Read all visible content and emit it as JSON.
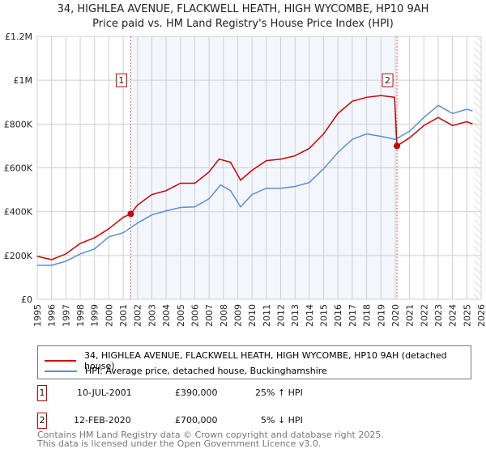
{
  "chart_data": {
    "type": "line",
    "title": "34, HIGHLEA AVENUE, FLACKWELL HEATH, HIGH WYCOMBE, HP10 9AH",
    "subtitle": "Price paid vs. HM Land Registry's House Price Index (HPI)",
    "xlim": [
      1995,
      2026
    ],
    "ylim": [
      0,
      1200000
    ],
    "y_ticks": [
      {
        "v": 0,
        "label": "£0"
      },
      {
        "v": 200000,
        "label": "£200K"
      },
      {
        "v": 400000,
        "label": "£400K"
      },
      {
        "v": 600000,
        "label": "£600K"
      },
      {
        "v": 800000,
        "label": "£800K"
      },
      {
        "v": 1000000,
        "label": "£1M"
      },
      {
        "v": 1200000,
        "label": "£1.2M"
      }
    ],
    "x_ticks": [
      "1995",
      "1996",
      "1997",
      "1998",
      "1999",
      "2000",
      "2001",
      "2002",
      "2003",
      "2004",
      "2005",
      "2006",
      "2007",
      "2008",
      "2009",
      "2010",
      "2011",
      "2012",
      "2013",
      "2014",
      "2015",
      "2016",
      "2017",
      "2018",
      "2019",
      "2020",
      "2021",
      "2022",
      "2023",
      "2024",
      "2025",
      "2026"
    ],
    "grid": true,
    "shaded_range": [
      2001.53,
      2020.12
    ],
    "hatched_from": 2025.5,
    "series": [
      {
        "name": "34, HIGHLEA AVENUE, FLACKWELL HEATH, HIGH WYCOMBE, HP10 9AH (detached house)",
        "color": "#cc0000",
        "x": [
          1995,
          1996,
          1997,
          1998,
          1999,
          2000,
          2001,
          2001.53,
          2002,
          2003,
          2004,
          2005,
          2006,
          2007,
          2007.7,
          2008.5,
          2009.2,
          2010,
          2011,
          2012,
          2013,
          2014,
          2015,
          2016,
          2017,
          2018,
          2019,
          2019.95,
          2020.12,
          2021,
          2022,
          2023,
          2024,
          2025,
          2025.4
        ],
        "y": [
          196000,
          181000,
          207000,
          255000,
          281000,
          322000,
          374000,
          390000,
          430000,
          478000,
          496000,
          530000,
          530000,
          581000,
          640000,
          626000,
          544000,
          589000,
          633000,
          640000,
          655000,
          689000,
          755000,
          848000,
          904000,
          922000,
          930000,
          922000,
          700000,
          737000,
          793000,
          830000,
          793000,
          811000,
          800000
        ]
      },
      {
        "name": "HPI: Average price, detached house, Buckinghamshire",
        "color": "#5b8fd4",
        "x": [
          1995,
          1996,
          1997,
          1998,
          1999,
          2000,
          2001,
          2002,
          2003,
          2004,
          2005,
          2006,
          2007,
          2007.8,
          2008.5,
          2009.2,
          2010,
          2011,
          2012,
          2013,
          2014,
          2015,
          2016,
          2017,
          2018,
          2019,
          2020,
          2021,
          2022,
          2023,
          2024,
          2025,
          2025.4
        ],
        "y": [
          155000,
          155000,
          174000,
          207000,
          230000,
          285000,
          304000,
          348000,
          385000,
          404000,
          419000,
          422000,
          459000,
          522000,
          496000,
          422000,
          478000,
          507000,
          507000,
          515000,
          533000,
          596000,
          670000,
          730000,
          755000,
          744000,
          730000,
          767000,
          830000,
          885000,
          848000,
          867000,
          860000
        ]
      }
    ],
    "markers": [
      {
        "label": "1",
        "x": 2001.53,
        "y": 390000
      },
      {
        "label": "2",
        "x": 2020.12,
        "y": 700000
      }
    ]
  },
  "legend": {
    "red": "34, HIGHLEA AVENUE, FLACKWELL HEATH, HIGH WYCOMBE, HP10 9AH (detached house)",
    "blue": "HPI: Average price, detached house, Buckinghamshire"
  },
  "sales": [
    {
      "num": "1",
      "date": "10-JUL-2001",
      "price": "£390,000",
      "hpi": "25% ↑ HPI"
    },
    {
      "num": "2",
      "date": "12-FEB-2020",
      "price": "£700,000",
      "hpi": "5% ↓ HPI"
    }
  ],
  "footer": {
    "line1": "Contains HM Land Registry data © Crown copyright and database right 2025.",
    "line2": "This data is licensed under the Open Government Licence v3.0."
  }
}
